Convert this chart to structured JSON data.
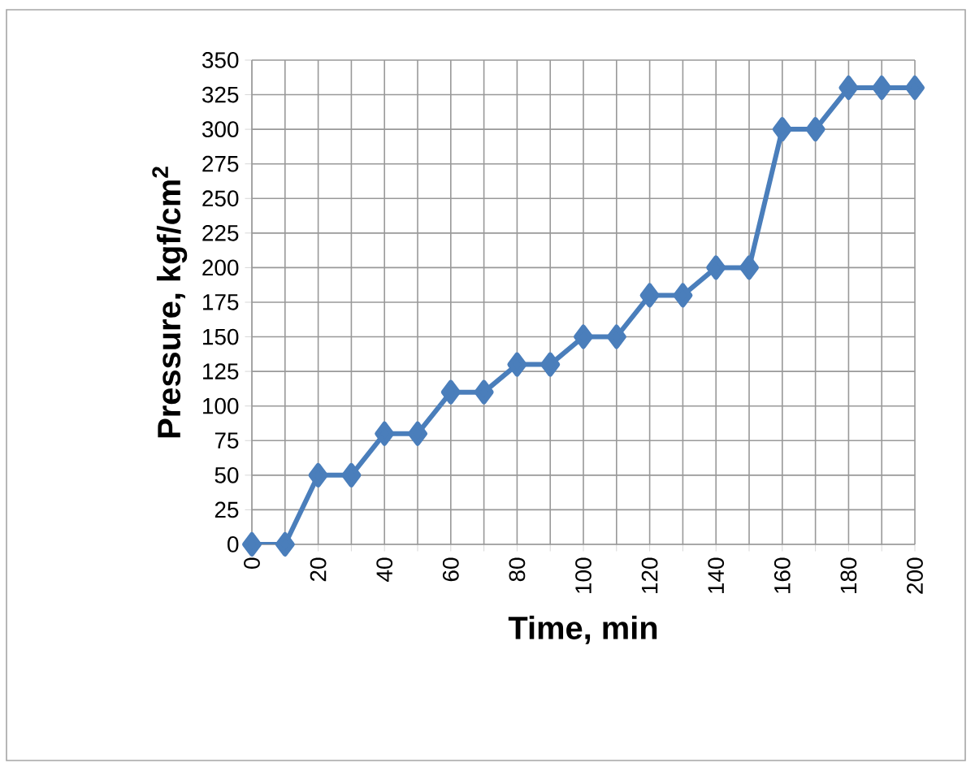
{
  "chart_data": {
    "type": "line",
    "xlabel": "Time, min",
    "ylabel": "Pressure, kgf/cm$^{2}$",
    "x": [
      0,
      10,
      20,
      30,
      40,
      50,
      60,
      70,
      80,
      90,
      100,
      110,
      120,
      130,
      140,
      150,
      160,
      170,
      180,
      190,
      200
    ],
    "series": [
      {
        "color": "#4a7ebb",
        "values": [
          0,
          0,
          50,
          50,
          80,
          80,
          110,
          110,
          130,
          130,
          150,
          150,
          180,
          180,
          200,
          200,
          300,
          300,
          330,
          330,
          330
        ]
      }
    ],
    "xlim": [
      0,
      200
    ],
    "xticks": [
      0,
      {
        "value": 10,
        "label": null
      },
      20,
      {
        "value": 30,
        "label": null
      },
      40,
      {
        "value": 50,
        "label": null
      },
      60,
      {
        "value": 70,
        "label": null
      },
      80,
      {
        "value": 90,
        "label": null
      },
      100,
      {
        "value": 110,
        "label": null
      },
      120,
      {
        "value": 130,
        "label": null
      },
      140,
      {
        "value": 150,
        "label": null
      },
      160,
      {
        "value": 170,
        "label": null
      },
      180,
      {
        "value": 190,
        "label": null
      },
      200
    ],
    "ylim": [
      0,
      350
    ],
    "yticks": [
      0,
      25,
      50,
      75,
      100,
      125,
      150,
      175,
      200,
      225,
      250,
      275,
      300,
      325,
      350
    ],
    "grid": true,
    "marker": "diamond",
    "line_style": "solid"
  }
}
